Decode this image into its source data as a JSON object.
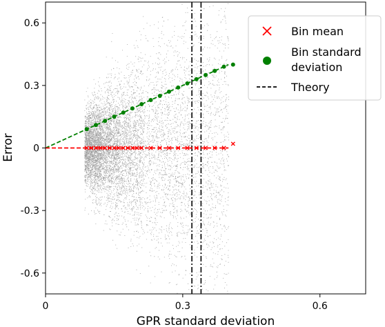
{
  "chart_data": {
    "type": "scatter",
    "xlabel": "GPR standard deviation",
    "ylabel": "Error",
    "xlim": [
      0,
      0.7
    ],
    "ylim": [
      -0.7,
      0.7
    ],
    "x_ticks": [
      0,
      0.3,
      0.6
    ],
    "x_tick_labels": [
      "0",
      "0.3",
      "0.6"
    ],
    "y_ticks": [
      -0.6,
      -0.3,
      0,
      0.3,
      0.6
    ],
    "y_tick_labels": [
      "-0.6",
      "-0.3",
      "0",
      "0.3",
      "0.6"
    ],
    "grid": false,
    "legend_position": "top-right",
    "colors": {
      "scatter": "#808080",
      "bin_mean": "#ff0000",
      "bin_std": "#008000",
      "theory": "#000000"
    },
    "scatter_note_x_range": [
      0.085,
      0.4
    ],
    "series": [
      {
        "name": "Bin mean",
        "marker": "x",
        "x": [
          0.09,
          0.1,
          0.11,
          0.12,
          0.13,
          0.14,
          0.15,
          0.16,
          0.17,
          0.18,
          0.19,
          0.2,
          0.21,
          0.23,
          0.25,
          0.27,
          0.29,
          0.31,
          0.33,
          0.35,
          0.37,
          0.39,
          0.41
        ],
        "y": [
          0.0,
          0.0,
          0.0,
          0.0,
          0.0,
          0.0,
          0.0,
          0.0,
          0.0,
          0.0,
          0.0,
          0.0,
          0.0,
          0.0,
          0.0,
          0.0,
          0.0,
          0.0,
          0.0,
          0.0,
          0.0,
          0.0,
          0.02
        ]
      },
      {
        "name": "Bin standard deviation",
        "marker": "circle",
        "x": [
          0.09,
          0.11,
          0.13,
          0.15,
          0.17,
          0.19,
          0.21,
          0.23,
          0.25,
          0.27,
          0.29,
          0.31,
          0.33,
          0.35,
          0.37,
          0.39,
          0.41
        ],
        "y": [
          0.09,
          0.11,
          0.13,
          0.15,
          0.17,
          0.19,
          0.21,
          0.23,
          0.25,
          0.27,
          0.29,
          0.31,
          0.33,
          0.35,
          0.37,
          0.39,
          0.4
        ]
      },
      {
        "name": "Theory",
        "style": "dashed",
        "lines": [
          {
            "x": [
              0,
              0.4
            ],
            "y": [
              0,
              0.4
            ],
            "color": "green"
          },
          {
            "x": [
              0,
              0.4
            ],
            "y": [
              0,
              0
            ],
            "color": "red"
          }
        ],
        "vertical_lines_x": [
          0.32,
          0.34
        ]
      }
    ],
    "legend": [
      {
        "label": "Bin mean",
        "marker": "x"
      },
      {
        "label_line1": "Bin standard",
        "label_line2": "deviation",
        "marker": "circle"
      },
      {
        "label": "Theory",
        "marker": "dashed-line"
      }
    ]
  }
}
